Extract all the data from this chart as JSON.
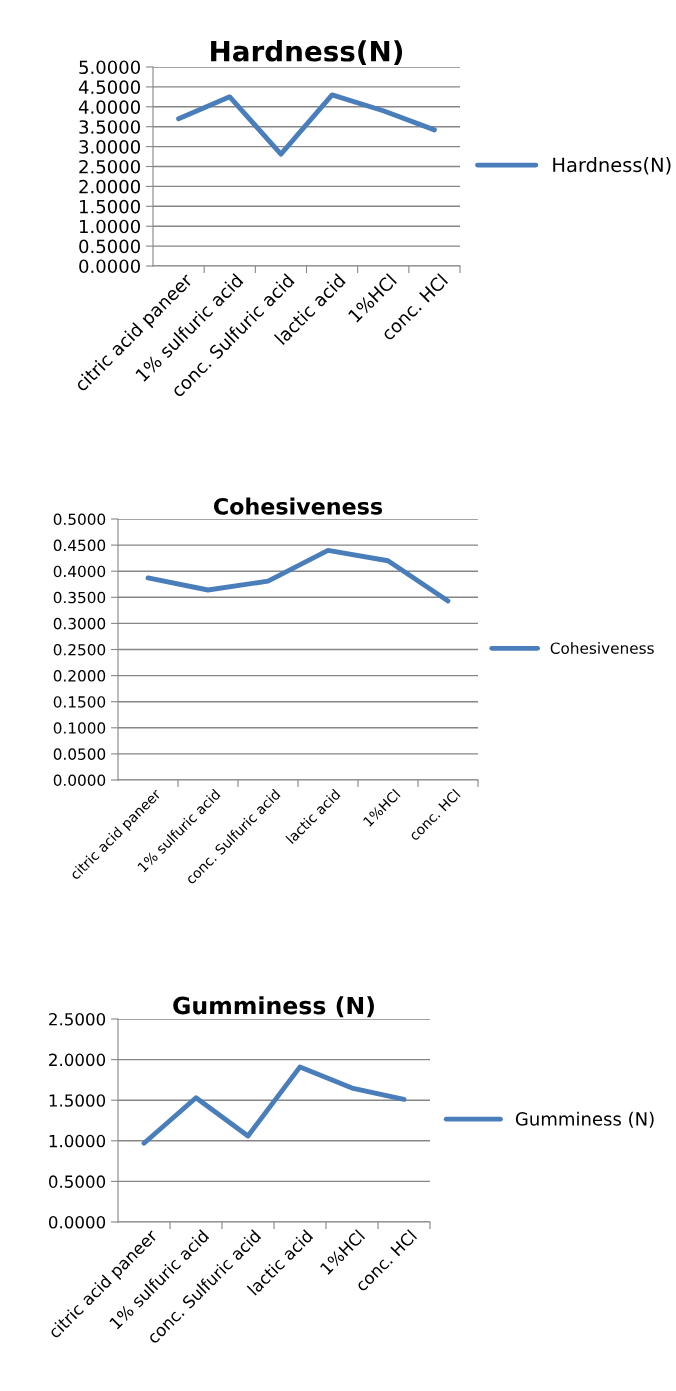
{
  "chart_data": [
    {
      "type": "line",
      "title": "Hardness(N)",
      "categories": [
        "citric acid paneer",
        "1% sulfuric acid",
        "conc. Sulfuric acid",
        "lactic acid",
        "1%HCl",
        "conc. HCl"
      ],
      "series": [
        {
          "name": "Hardness(N)",
          "color": "#4a7ebb",
          "values": [
            3.7,
            4.25,
            2.81,
            4.3,
            3.9,
            3.42
          ]
        }
      ],
      "ylim": [
        0,
        5
      ],
      "yticks": [
        {
          "value": 0,
          "label": "0.0000"
        },
        {
          "value": 0.5,
          "label": "0.5000"
        },
        {
          "value": 1,
          "label": "1.0000"
        },
        {
          "value": 1.5,
          "label": "1.5000"
        },
        {
          "value": 2,
          "label": "2.0000"
        },
        {
          "value": 2.5,
          "label": "2.5000"
        },
        {
          "value": 3,
          "label": "3.0000"
        },
        {
          "value": 3.5,
          "label": "3.5000"
        },
        {
          "value": 4,
          "label": "4.0000"
        },
        {
          "value": 4.5,
          "label": "4.5000"
        },
        {
          "value": 5,
          "label": "5.0000"
        }
      ],
      "grid": "y",
      "legend": "right",
      "marker": "none",
      "line_style": "solid"
    },
    {
      "type": "line",
      "title": "Cohesiveness",
      "categories": [
        "citric acid paneer",
        "1% sulfuric acid",
        "conc. Sulfuric acid",
        "lactic acid",
        "1%HCl",
        "conc. HCl"
      ],
      "series": [
        {
          "name": "Cohesiveness",
          "color": "#4a7ebb",
          "values": [
            0.387,
            0.364,
            0.381,
            0.44,
            0.42,
            0.343
          ]
        }
      ],
      "ylim": [
        0,
        0.5
      ],
      "yticks": [
        {
          "value": 0,
          "label": "0.0000"
        },
        {
          "value": 0.05,
          "label": "0.0500"
        },
        {
          "value": 0.1,
          "label": "0.1000"
        },
        {
          "value": 0.15,
          "label": "0.1500"
        },
        {
          "value": 0.2,
          "label": "0.2000"
        },
        {
          "value": 0.25,
          "label": "0.2500"
        },
        {
          "value": 0.3,
          "label": "0.3000"
        },
        {
          "value": 0.35,
          "label": "0.3500"
        },
        {
          "value": 0.4,
          "label": "0.4000"
        },
        {
          "value": 0.45,
          "label": "0.4500"
        },
        {
          "value": 0.5,
          "label": "0.5000"
        }
      ],
      "grid": "y",
      "legend": "right",
      "marker": "none",
      "line_style": "solid"
    },
    {
      "type": "line",
      "title": "Gumminess (N)",
      "categories": [
        "citric acid paneer",
        "1% sulfuric acid",
        "conc. Sulfuric acid",
        "lactic acid",
        "1%HCl",
        "conc. HCl"
      ],
      "series": [
        {
          "name": "Gumminess (N)",
          "color": "#4a7ebb",
          "values": [
            0.97,
            1.53,
            1.06,
            1.91,
            1.65,
            1.51
          ]
        }
      ],
      "ylim": [
        0,
        2.5
      ],
      "yticks": [
        {
          "value": 0,
          "label": "0.0000"
        },
        {
          "value": 0.5,
          "label": "0.5000"
        },
        {
          "value": 1,
          "label": "1.0000"
        },
        {
          "value": 1.5,
          "label": "1.5000"
        },
        {
          "value": 2,
          "label": "2.0000"
        },
        {
          "value": 2.5,
          "label": "2.5000"
        }
      ],
      "grid": "y",
      "legend": "right",
      "marker": "none",
      "line_style": "solid"
    }
  ]
}
